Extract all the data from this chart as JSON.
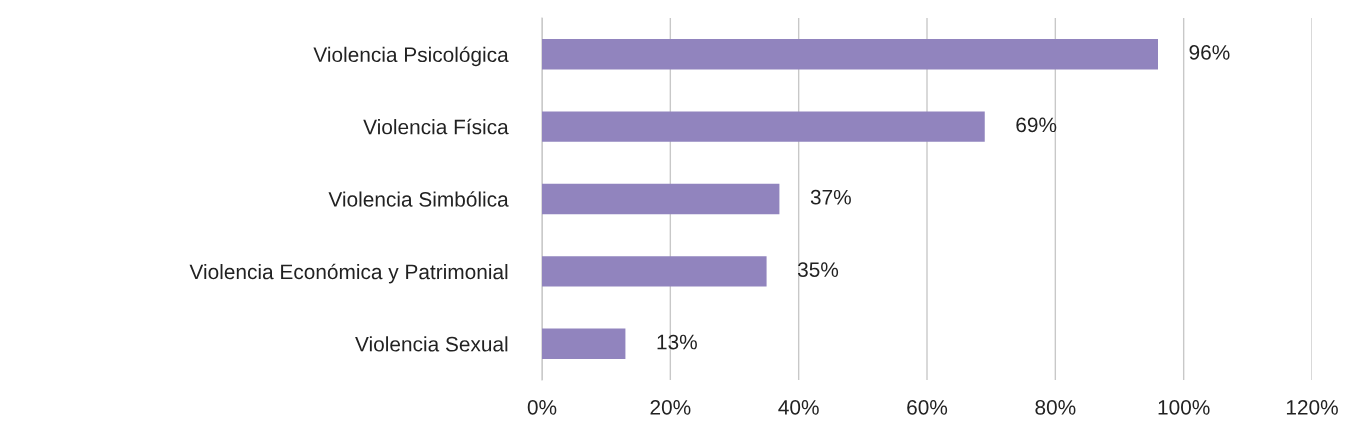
{
  "chart_data": {
    "type": "bar",
    "orientation": "horizontal",
    "categories": [
      "Violencia Psicológica",
      "Violencia Física",
      "Violencia Simbólica",
      "Violencia Económica y Patrimonial",
      "Violencia Sexual"
    ],
    "values": [
      96,
      69,
      37,
      35,
      13
    ],
    "color": "#9184be",
    "data_labels": true,
    "value_labels": [
      "96%",
      "69%",
      "37%",
      "35%",
      "13%"
    ],
    "xlim": [
      0,
      120
    ],
    "xticks": [
      {
        "value": 0,
        "label": "0%"
      },
      {
        "value": 20,
        "label": "20%"
      },
      {
        "value": 40,
        "label": "40%"
      },
      {
        "value": 60,
        "label": "60%"
      },
      {
        "value": 80,
        "label": "80%"
      },
      {
        "value": 100,
        "label": "100%"
      },
      {
        "value": 120,
        "label": "120%"
      }
    ],
    "grid": "x",
    "legend": false
  }
}
